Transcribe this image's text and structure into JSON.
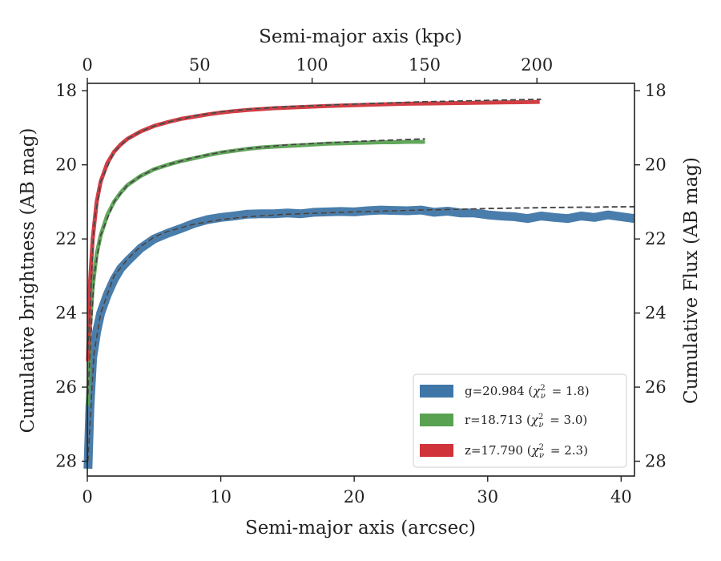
{
  "chart_data": {
    "type": "line",
    "title": "",
    "xlabel": "Semi-major axis (arcsec)",
    "ylabel": "Cumulative brightness (AB mag)",
    "top_xlabel": "Semi-major axis (kpc)",
    "right_ylabel": "Cumulative Flux (AB mag)",
    "xlim": [
      0,
      41
    ],
    "ylim": [
      28.4,
      17.8
    ],
    "y_inverted": true,
    "top_xlim_kpc": [
      0,
      243.4
    ],
    "kpc_per_arcsec": 5.936,
    "x_ticks": [
      0,
      10,
      20,
      30,
      40
    ],
    "x_tick_labels": [
      "0",
      "10",
      "20",
      "30",
      "40"
    ],
    "top_x_ticks": [
      0,
      50,
      100,
      150,
      200
    ],
    "top_x_tick_labels": [
      "0",
      "50",
      "100",
      "150",
      "200"
    ],
    "y_ticks": [
      18,
      20,
      22,
      24,
      26,
      28
    ],
    "y_tick_labels": [
      "18",
      "20",
      "22",
      "24",
      "26",
      "28"
    ],
    "grid": false,
    "legend_position": "lower-right",
    "series": [
      {
        "name": "g=20.984 (χ²ν = 1.8)",
        "legend_text": "g=20.984 (",
        "legend_stat": "= 1.8)",
        "color": "#3f76a8",
        "band": "wide",
        "x": [
          0.05,
          0.2,
          0.4,
          0.7,
          1.0,
          1.5,
          2.0,
          2.5,
          3,
          4,
          5,
          6,
          7,
          8,
          9,
          10,
          11,
          12,
          13,
          14,
          15,
          16,
          17,
          18,
          19,
          20,
          21,
          22,
          23,
          24,
          25,
          26,
          27,
          28,
          29,
          30,
          31,
          32,
          33,
          34,
          35,
          36,
          37,
          38,
          39,
          40,
          41
        ],
        "y": [
          28.2,
          26.5,
          25.2,
          24.5,
          24.0,
          23.5,
          23.1,
          22.8,
          22.6,
          22.25,
          22.0,
          21.85,
          21.72,
          21.58,
          21.48,
          21.42,
          21.38,
          21.33,
          21.32,
          21.32,
          21.3,
          21.32,
          21.28,
          21.27,
          21.26,
          21.27,
          21.24,
          21.22,
          21.23,
          21.24,
          21.22,
          21.28,
          21.25,
          21.3,
          21.3,
          21.35,
          21.38,
          21.4,
          21.45,
          21.38,
          21.42,
          21.45,
          21.38,
          21.42,
          21.35,
          21.4,
          21.45
        ]
      },
      {
        "name": "r=18.713 (χ²ν = 3.0)",
        "legend_text": "r=18.713 (",
        "legend_stat": "= 3.0)",
        "color": "#58a252",
        "band": "thin",
        "x": [
          0.05,
          0.2,
          0.4,
          0.7,
          1.0,
          1.5,
          2.0,
          2.5,
          3,
          4,
          5,
          6,
          7,
          8,
          9,
          10,
          11,
          12,
          13,
          14,
          15,
          16,
          17,
          18,
          19,
          20,
          21,
          22,
          23,
          24,
          25.3
        ],
        "y": [
          26.5,
          24.4,
          23.3,
          22.4,
          21.9,
          21.35,
          21.0,
          20.75,
          20.55,
          20.3,
          20.12,
          20.0,
          19.9,
          19.82,
          19.74,
          19.67,
          19.62,
          19.57,
          19.53,
          19.51,
          19.49,
          19.47,
          19.45,
          19.43,
          19.42,
          19.41,
          19.4,
          19.39,
          19.39,
          19.38,
          19.38
        ]
      },
      {
        "name": "z=17.790 (χ²ν = 2.3)",
        "legend_text": "z=17.790 (",
        "legend_stat": "= 2.3)",
        "color": "#d03339",
        "band": "thin",
        "x": [
          0.05,
          0.2,
          0.4,
          0.7,
          1.0,
          1.5,
          2.0,
          2.5,
          3,
          4,
          5,
          6,
          7,
          8,
          9,
          10,
          11,
          12,
          14,
          16,
          18,
          20,
          22,
          24,
          26,
          28,
          30,
          32,
          33.9
        ],
        "y": [
          25.3,
          23.2,
          22.0,
          21.0,
          20.45,
          19.95,
          19.65,
          19.45,
          19.3,
          19.1,
          18.95,
          18.85,
          18.76,
          18.7,
          18.64,
          18.59,
          18.55,
          18.52,
          18.47,
          18.44,
          18.41,
          18.39,
          18.37,
          18.35,
          18.34,
          18.33,
          18.32,
          18.31,
          18.3
        ]
      }
    ],
    "model_fits": [
      {
        "band": "g",
        "x": [
          0.05,
          0.5,
          1,
          2,
          3,
          4,
          5,
          6,
          8,
          10,
          12,
          15,
          20,
          25,
          28,
          30,
          35,
          41
        ],
        "y": [
          28.0,
          25.1,
          24.0,
          23.0,
          22.55,
          22.2,
          21.95,
          21.8,
          21.6,
          21.48,
          21.4,
          21.33,
          21.27,
          21.22,
          21.2,
          21.18,
          21.15,
          21.13
        ]
      },
      {
        "band": "r",
        "x": [
          0.05,
          0.5,
          1,
          2,
          3,
          4,
          5,
          6,
          8,
          10,
          12,
          15,
          20,
          25.3
        ],
        "y": [
          26.2,
          23.0,
          21.9,
          21.0,
          20.55,
          20.3,
          20.12,
          20.0,
          19.8,
          19.66,
          19.56,
          19.46,
          19.37,
          19.3
        ]
      },
      {
        "band": "z",
        "x": [
          0.05,
          0.5,
          1,
          2,
          3,
          4,
          5,
          6,
          8,
          10,
          12,
          15,
          20,
          25,
          30,
          34
        ],
        "y": [
          25.0,
          21.6,
          20.45,
          19.65,
          19.3,
          19.1,
          18.95,
          18.85,
          18.68,
          18.57,
          18.5,
          18.43,
          18.36,
          18.3,
          18.26,
          18.23
        ]
      }
    ]
  }
}
